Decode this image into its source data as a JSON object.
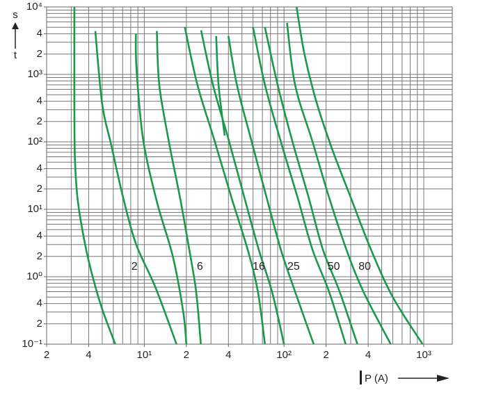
{
  "chart_data": {
    "type": "line",
    "x_log": true,
    "y_log": true,
    "grid": true,
    "x_label": "P (A)",
    "y_label": "t",
    "y_unit": "s",
    "xlim": [
      2,
      1600
    ],
    "ylim": [
      0.1,
      10000
    ],
    "xticks": [
      2,
      4,
      {
        "value": 10,
        "label": "10¹"
      },
      {
        "value": 20,
        "label": "2"
      },
      {
        "value": 40,
        "label": "4"
      },
      {
        "value": 100,
        "label": "10²"
      },
      {
        "value": 200,
        "label": "2"
      },
      {
        "value": 400,
        "label": "4"
      },
      {
        "value": 1000,
        "label": "10³"
      }
    ],
    "yticks": [
      {
        "value": 10000,
        "label": "10⁴"
      },
      {
        "value": 4000,
        "label": "4"
      },
      {
        "value": 2000,
        "label": "2"
      },
      {
        "value": 1000,
        "label": "10³"
      },
      {
        "value": 400,
        "label": "4"
      },
      {
        "value": 200,
        "label": "2"
      },
      {
        "value": 100,
        "label": "10²"
      },
      {
        "value": 40,
        "label": "4"
      },
      {
        "value": 20,
        "label": "2"
      },
      {
        "value": 10,
        "label": "10¹"
      },
      4,
      2,
      {
        "value": 1,
        "label": "10⁰"
      },
      {
        "value": 0.4,
        "label": "4"
      },
      {
        "value": 0.2,
        "label": "2"
      },
      {
        "value": 0.1,
        "label": "10⁻¹"
      }
    ],
    "xgrid": [
      3,
      4,
      5,
      6,
      7,
      8,
      9,
      10,
      20,
      30,
      40,
      50,
      60,
      70,
      80,
      90,
      100,
      200,
      300,
      400,
      500,
      600,
      700,
      800,
      900,
      1000
    ],
    "ygrid": [
      0.2,
      0.3,
      0.4,
      0.5,
      0.6,
      0.7,
      0.8,
      0.9,
      1,
      2,
      3,
      4,
      5,
      6,
      7,
      8,
      9,
      10,
      20,
      30,
      40,
      50,
      60,
      70,
      80,
      90,
      100,
      200,
      300,
      400,
      500,
      600,
      700,
      800,
      900,
      1000,
      2000,
      3000,
      4000,
      5000,
      6000,
      7000,
      8000,
      9000
    ],
    "series": [
      {
        "color": "#179a4b",
        "x": [
          3.16,
          3.16,
          3.19,
          3.35,
          3.76,
          4.27,
          5.0,
          6.2
        ],
        "values": [
          10000,
          361,
          54,
          13,
          3.1,
          1.0,
          0.33,
          0.1
        ]
      },
      {
        "color": "#179a4b",
        "x": [
          4.46,
          5.0,
          5.8,
          7.0,
          8.7,
          12,
          17
        ],
        "values": [
          4400,
          360,
          90,
          16,
          3.1,
          0.7,
          0.1
        ]
      },
      {
        "color": "#179a4b",
        "x": [
          8.7,
          8.8,
          9.8,
          12.3,
          16,
          19,
          20
        ],
        "values": [
          4000,
          1200,
          110,
          13,
          2,
          0.3,
          0.1
        ]
      },
      {
        "color": "#179a4b",
        "x": [
          12.3,
          12.8,
          15,
          18,
          21,
          23.5,
          25.4
        ],
        "values": [
          4400,
          700,
          100,
          15,
          2.5,
          0.6,
          0.1
        ]
      },
      {
        "color": "#179a4b",
        "x": [
          19.5,
          24,
          32,
          42,
          55,
          65,
          73
        ],
        "values": [
          5000,
          700,
          100,
          15,
          2.5,
          0.6,
          0.1
        ]
      },
      {
        "color": "#179a4b",
        "x": [
          25.5,
          31,
          40,
          52,
          66,
          82,
          100
        ],
        "values": [
          4500,
          700,
          110,
          15,
          2.5,
          0.6,
          0.1
        ]
      },
      {
        "color": "#179a4b",
        "x": [
          32.7,
          34,
          37.6
        ],
        "values": [
          3700,
          700,
          124
        ]
      },
      {
        "color": "#179a4b",
        "x": [
          40,
          46,
          58,
          75,
          95,
          120,
          163
        ],
        "values": [
          3700,
          700,
          110,
          15,
          2.5,
          0.6,
          0.1
        ]
      },
      {
        "color": "#179a4b",
        "x": [
          60,
          73,
          95,
          125,
          160,
          210,
          276
        ],
        "values": [
          5000,
          700,
          100,
          15,
          2.5,
          0.6,
          0.1
        ]
      },
      {
        "color": "#179a4b",
        "x": [
          73,
          90,
          115,
          150,
          190,
          250,
          335
        ],
        "values": [
          5000,
          700,
          100,
          15,
          2.5,
          0.6,
          0.1
        ]
      },
      {
        "color": "#179a4b",
        "x": [
          105,
          120,
          160,
          210,
          280,
          370,
          580
        ],
        "values": [
          5800,
          700,
          100,
          15,
          2.5,
          0.6,
          0.1
        ]
      },
      {
        "color": "#179a4b",
        "x": [
          123,
          140,
          170,
          220,
          300,
          420,
          600,
          980
        ],
        "values": [
          10000,
          2000,
          400,
          80,
          15,
          2.5,
          0.5,
          0.1
        ]
      }
    ],
    "annotations": [
      {
        "text": "2",
        "x": 8.5,
        "y": 1.4
      },
      {
        "text": "6",
        "x": 25,
        "y": 1.4
      },
      {
        "text": "16",
        "x": 66,
        "y": 1.4
      },
      {
        "text": "25",
        "x": 117,
        "y": 1.4
      },
      {
        "text": "50",
        "x": 227,
        "y": 1.4
      },
      {
        "text": "80",
        "x": 378,
        "y": 1.4
      }
    ]
  }
}
